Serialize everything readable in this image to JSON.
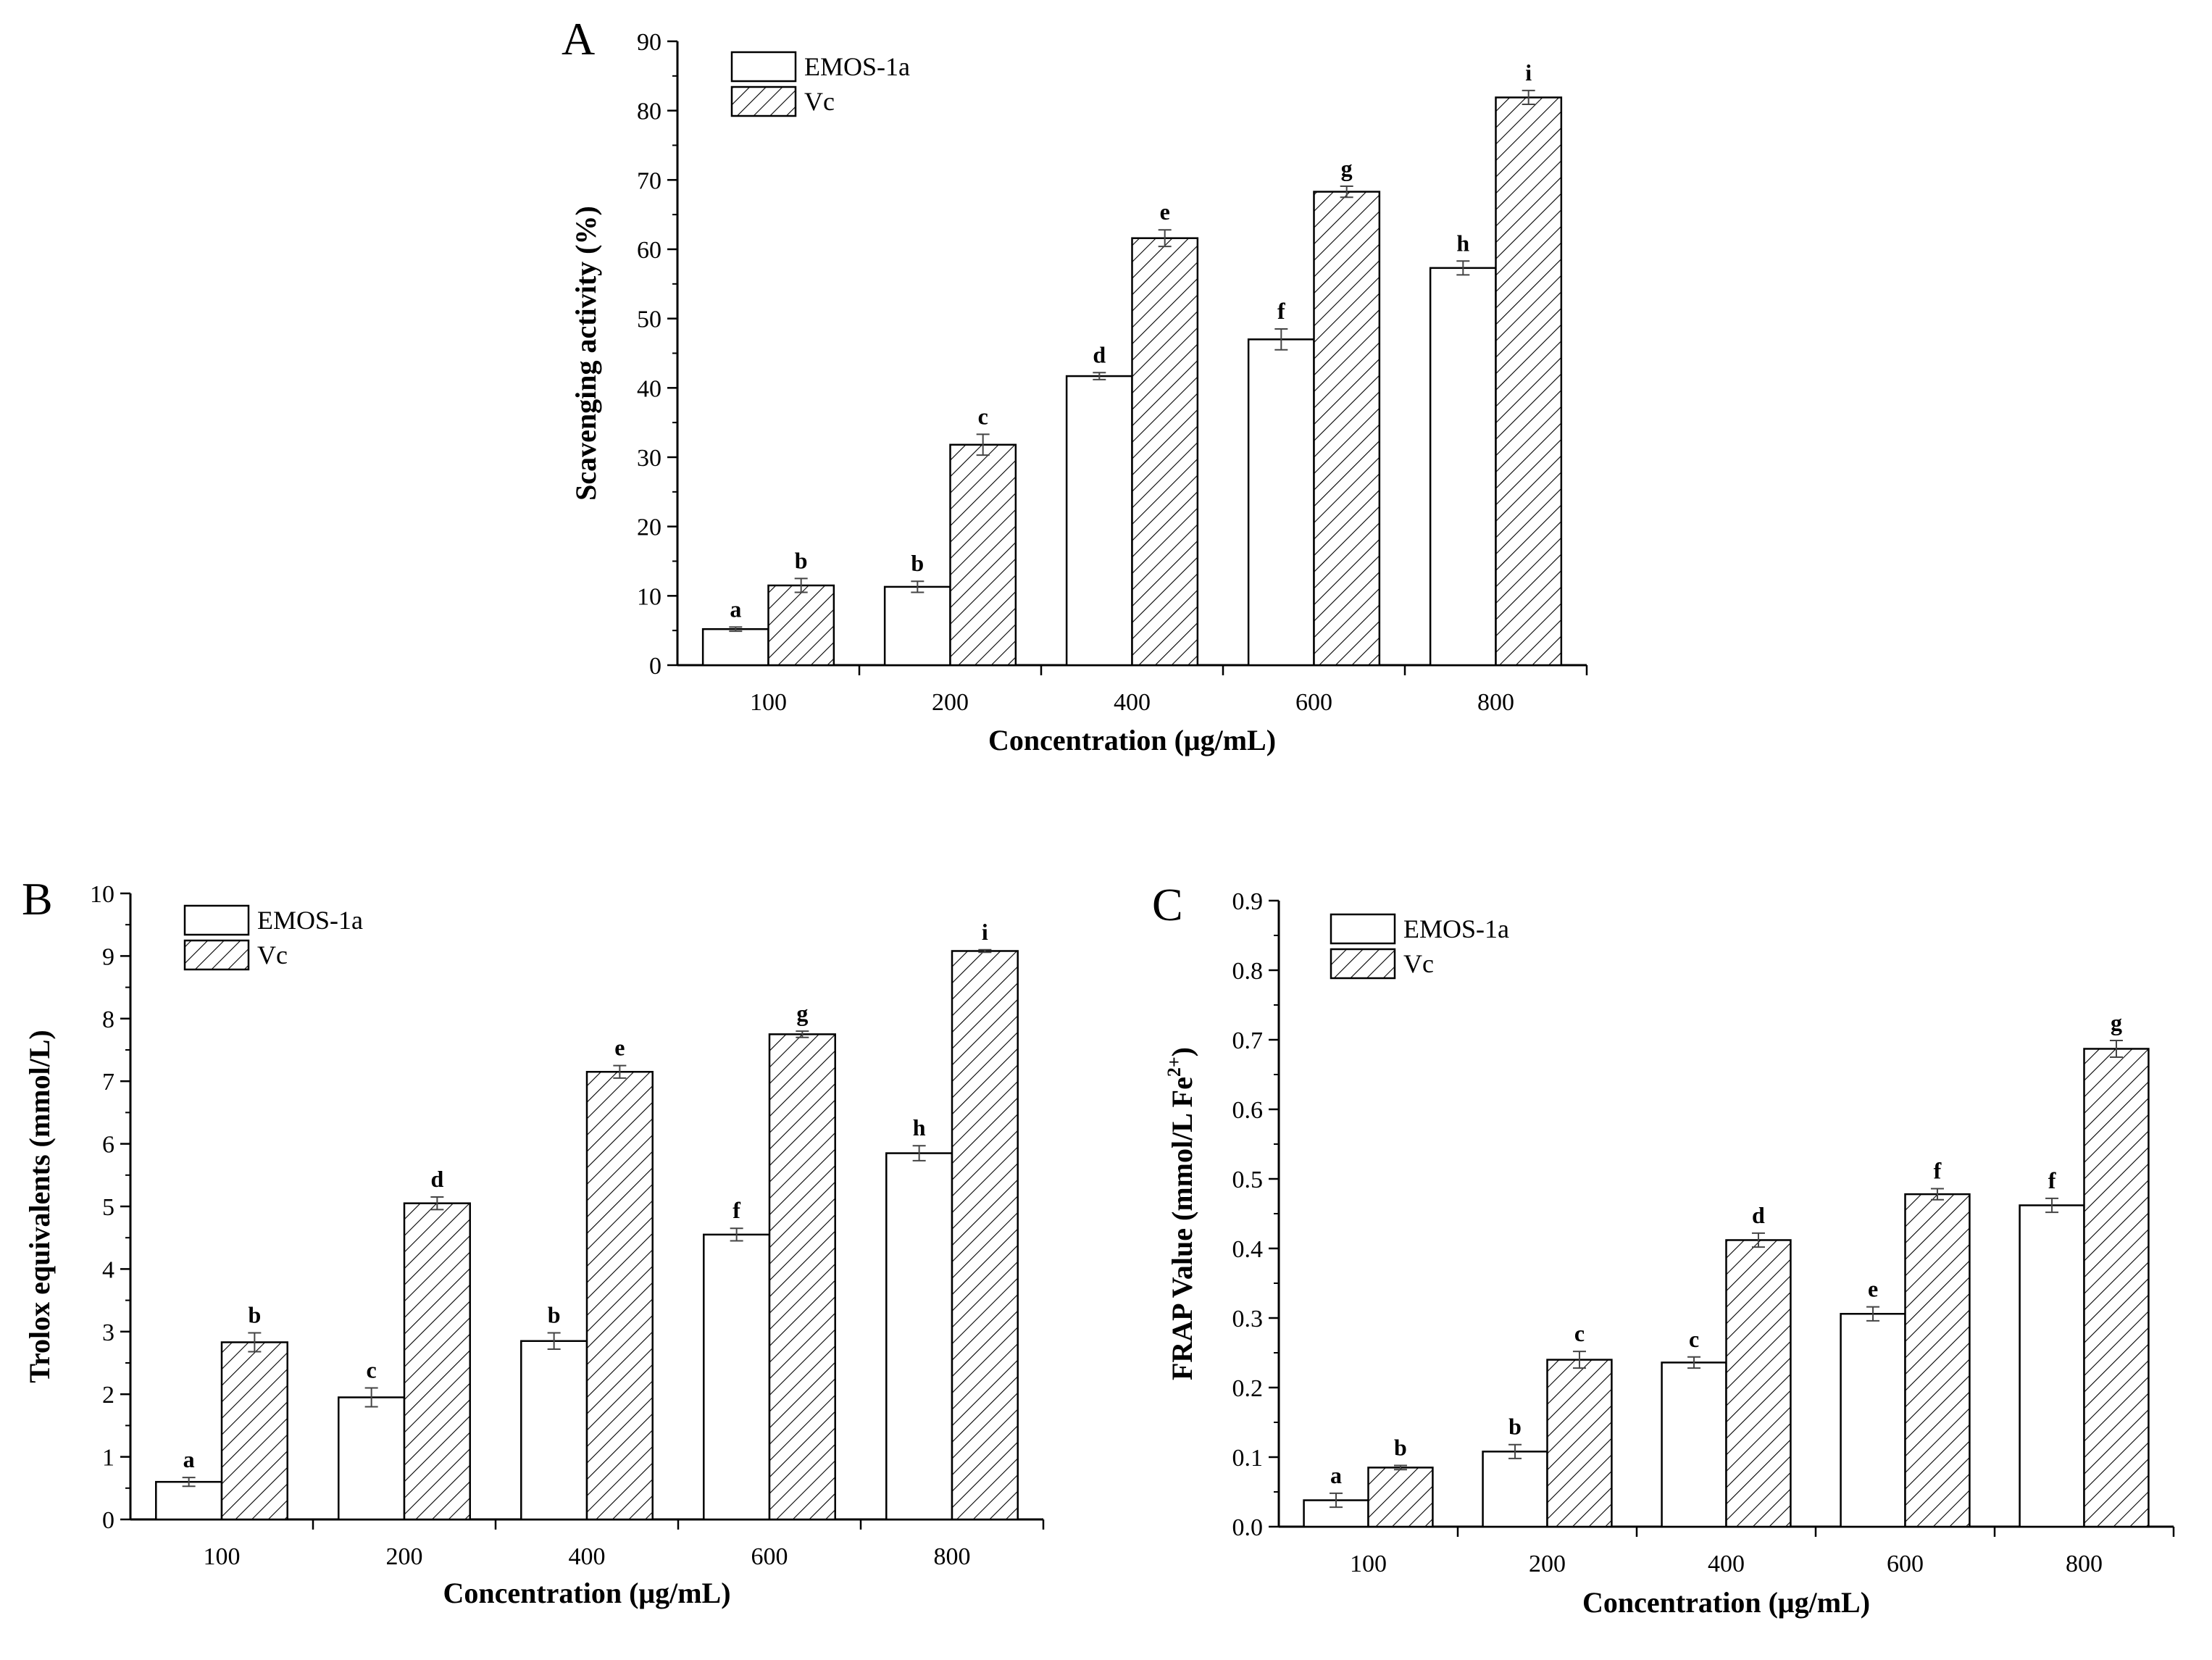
{
  "colors": {
    "background": "#ffffff",
    "line": "#000000",
    "bar_fill_plain": "#ffffff",
    "bar_hatch": "#000000"
  },
  "chart_data": [
    {
      "type": "bar",
      "panel": "A",
      "categories": [
        "100",
        "200",
        "400",
        "600",
        "800"
      ],
      "xlabel": "Concentration (μg/mL)",
      "ylabel": "Scavenging activity (%)",
      "ylim": [
        0,
        90
      ],
      "yticks": [
        "0",
        "10",
        "20",
        "30",
        "40",
        "50",
        "60",
        "70",
        "80",
        "90"
      ],
      "legend_position": "top-left",
      "grid": false,
      "series": [
        {
          "name": "EMOS-1a",
          "pattern": "plain",
          "values": [
            5.2,
            11.3,
            41.7,
            47.0,
            57.3
          ],
          "errors": [
            0.3,
            0.8,
            0.5,
            1.5,
            1.0
          ],
          "letters": [
            "a",
            "b",
            "d",
            "f",
            "h"
          ]
        },
        {
          "name": "Vc",
          "pattern": "hatched",
          "values": [
            11.5,
            31.8,
            61.6,
            68.3,
            81.9
          ],
          "errors": [
            1.0,
            1.5,
            1.2,
            0.8,
            1.0
          ],
          "letters": [
            "b",
            "c",
            "e",
            "g",
            "i"
          ]
        }
      ]
    },
    {
      "type": "bar",
      "panel": "B",
      "categories": [
        "100",
        "200",
        "400",
        "600",
        "800"
      ],
      "xlabel": "Concentration (μg/mL)",
      "ylabel": "Trolox equivalents (mmol/L)",
      "ylim": [
        0,
        10
      ],
      "yticks": [
        "0",
        "1",
        "2",
        "3",
        "4",
        "5",
        "6",
        "7",
        "8",
        "9",
        "10"
      ],
      "legend_position": "top-left",
      "grid": false,
      "series": [
        {
          "name": "EMOS-1a",
          "pattern": "plain",
          "values": [
            0.6,
            1.95,
            2.85,
            4.55,
            5.85
          ],
          "errors": [
            0.07,
            0.15,
            0.13,
            0.1,
            0.12
          ],
          "letters": [
            "a",
            "c",
            "b",
            "f",
            "h"
          ]
        },
        {
          "name": "Vc",
          "pattern": "hatched",
          "values": [
            2.83,
            5.05,
            7.15,
            7.75,
            9.08
          ],
          "errors": [
            0.15,
            0.1,
            0.1,
            0.05,
            0.02
          ],
          "letters": [
            "b",
            "d",
            "e",
            "g",
            "i"
          ]
        }
      ]
    },
    {
      "type": "bar",
      "panel": "C",
      "categories": [
        "100",
        "200",
        "400",
        "600",
        "800"
      ],
      "xlabel": "Concentration (μg/mL)",
      "ylabel": "FRAP Value (mmol/L Fe",
      "ylabel_superscript": "2+",
      "ylabel_end": ")",
      "ylim": [
        0,
        0.9
      ],
      "yticks": [
        "0.0",
        "0.1",
        "0.2",
        "0.3",
        "0.4",
        "0.5",
        "0.6",
        "0.7",
        "0.8",
        "0.9"
      ],
      "legend_position": "top-left",
      "grid": false,
      "series": [
        {
          "name": "EMOS-1a",
          "pattern": "plain",
          "values": [
            0.038,
            0.108,
            0.236,
            0.306,
            0.462
          ],
          "errors": [
            0.01,
            0.01,
            0.008,
            0.01,
            0.01
          ],
          "letters": [
            "a",
            "b",
            "c",
            "e",
            "f"
          ]
        },
        {
          "name": "Vc",
          "pattern": "hatched",
          "values": [
            0.085,
            0.24,
            0.412,
            0.478,
            0.687
          ],
          "errors": [
            0.003,
            0.012,
            0.01,
            0.008,
            0.012
          ],
          "letters": [
            "b",
            "c",
            "d",
            "f",
            "g"
          ]
        }
      ]
    }
  ]
}
